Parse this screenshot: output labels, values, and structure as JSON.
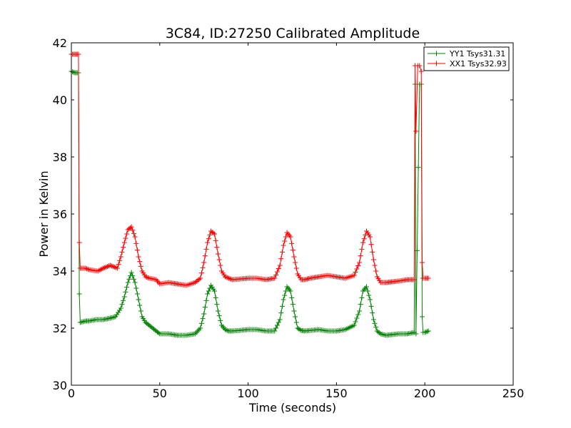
{
  "chart_data": {
    "type": "line",
    "title": "3C84, ID:27250 Calibrated Amplitude",
    "xlabel": "Time (seconds)",
    "ylabel": "Power in Kelvin",
    "xlim": [
      0,
      250
    ],
    "ylim": [
      30,
      42
    ],
    "xticks": [
      0,
      50,
      100,
      150,
      200,
      250
    ],
    "yticks": [
      30,
      32,
      34,
      36,
      38,
      40,
      42
    ],
    "grid": false,
    "legend_position": "top-right",
    "marker": "+",
    "series": [
      {
        "name": "YY1 Tsys31.31",
        "color": "#008000",
        "x": [
          0,
          2,
          4,
          4.5,
          5,
          8,
          10,
          14,
          18,
          22,
          25,
          28,
          30,
          32,
          34,
          36,
          38,
          40,
          42,
          44,
          46,
          48,
          50,
          55,
          60,
          65,
          70,
          73,
          75,
          77,
          79,
          81,
          83,
          85,
          87,
          89,
          91,
          95,
          100,
          105,
          110,
          115,
          118,
          120,
          122,
          124,
          126,
          128,
          130,
          132,
          135,
          140,
          145,
          150,
          155,
          160,
          163,
          165,
          167,
          169,
          171,
          173,
          175,
          178,
          185,
          190,
          194,
          194.5,
          195,
          197,
          198,
          198.5,
          199,
          200,
          202
        ],
        "y": [
          41.0,
          40.95,
          40.95,
          33.2,
          32.2,
          32.25,
          32.25,
          32.3,
          32.3,
          32.35,
          32.4,
          32.7,
          33.1,
          33.6,
          33.95,
          33.6,
          33.0,
          32.4,
          32.2,
          32.1,
          32.0,
          31.9,
          31.8,
          31.8,
          31.75,
          31.75,
          31.8,
          32.0,
          32.5,
          33.2,
          33.5,
          33.3,
          32.6,
          32.1,
          31.95,
          31.9,
          31.9,
          31.92,
          31.95,
          31.95,
          31.9,
          31.9,
          32.3,
          33.0,
          33.45,
          33.3,
          32.6,
          32.0,
          31.92,
          31.9,
          31.92,
          31.95,
          31.9,
          31.9,
          31.95,
          32.1,
          32.6,
          33.3,
          33.45,
          33.0,
          32.3,
          31.9,
          31.8,
          31.75,
          31.8,
          31.8,
          31.85,
          40.55,
          31.8,
          40.55,
          40.55,
          32.4,
          31.85,
          31.85,
          31.9
        ]
      },
      {
        "name": "XX1 Tsys32.93",
        "color": "#ff0000",
        "x": [
          0,
          2,
          4,
          4.5,
          5,
          8,
          10,
          15,
          18,
          22,
          26,
          28,
          30,
          32,
          34,
          36,
          38,
          40,
          42,
          44,
          48,
          50,
          55,
          60,
          65,
          70,
          73,
          75,
          77,
          79,
          81,
          83,
          85,
          87,
          89,
          91,
          95,
          100,
          105,
          110,
          115,
          118,
          120,
          122,
          124,
          126,
          128,
          130,
          132,
          135,
          140,
          145,
          150,
          155,
          160,
          163,
          165,
          167,
          169,
          171,
          173,
          175,
          178,
          185,
          190,
          194,
          194.5,
          195,
          196,
          197,
          198,
          198.5,
          199,
          200,
          202
        ],
        "y": [
          41.6,
          41.6,
          41.6,
          35.0,
          34.1,
          34.1,
          34.05,
          34.0,
          34.1,
          34.2,
          34.1,
          34.5,
          35.0,
          35.45,
          35.55,
          35.2,
          34.5,
          34.0,
          33.8,
          33.75,
          33.7,
          33.55,
          33.6,
          33.55,
          33.5,
          33.6,
          33.75,
          34.3,
          35.0,
          35.4,
          35.3,
          34.6,
          34.0,
          33.8,
          33.75,
          33.7,
          33.72,
          33.75,
          33.75,
          33.7,
          33.75,
          34.2,
          34.9,
          35.35,
          35.2,
          34.5,
          33.9,
          33.7,
          33.7,
          33.75,
          33.8,
          33.85,
          33.8,
          33.75,
          33.85,
          34.3,
          35.0,
          35.4,
          35.2,
          34.4,
          33.8,
          33.6,
          33.6,
          33.65,
          33.7,
          33.7,
          41.2,
          38.9,
          41.2,
          41.2,
          41.0,
          34.3,
          33.75,
          33.75,
          33.75
        ]
      }
    ]
  }
}
